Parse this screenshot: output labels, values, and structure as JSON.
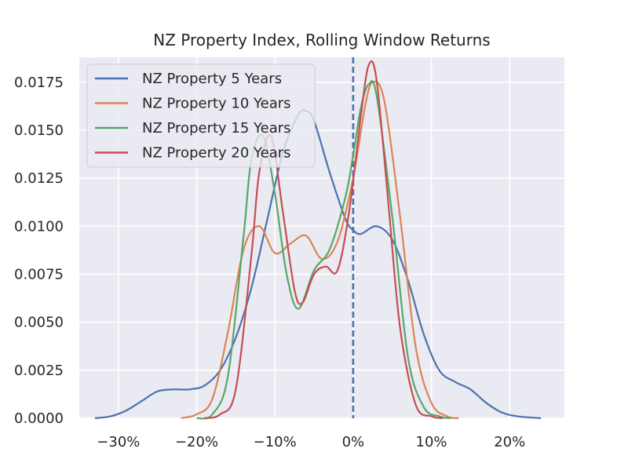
{
  "chart_data": {
    "type": "line",
    "title": "NZ Property Index, Rolling Window Returns",
    "xlabel": "",
    "ylabel": "",
    "xlim": [
      -0.35,
      0.27
    ],
    "ylim": [
      0,
      0.0188
    ],
    "x_ticks": [
      -0.3,
      -0.2,
      -0.1,
      0.0,
      0.1,
      0.2
    ],
    "x_tick_labels": [
      "−30%",
      "−20%",
      "−10%",
      "0%",
      "10%",
      "20%"
    ],
    "y_ticks": [
      0.0,
      0.0025,
      0.005,
      0.0075,
      0.01,
      0.0125,
      0.015,
      0.0175
    ],
    "y_tick_labels": [
      "0.0000",
      "0.0025",
      "0.0050",
      "0.0075",
      "0.0100",
      "0.0125",
      "0.0150",
      "0.0175"
    ],
    "grid": true,
    "legend_position": "top-left",
    "vline": {
      "x": 0.0,
      "style": "dashed",
      "color": "#4c72b0"
    },
    "series": [
      {
        "name": "NZ Property 5 Years",
        "color": "#4c72b0",
        "x": [
          -0.33,
          -0.31,
          -0.29,
          -0.27,
          -0.25,
          -0.23,
          -0.21,
          -0.19,
          -0.17,
          -0.15,
          -0.13,
          -0.11,
          -0.09,
          -0.07,
          -0.06,
          -0.05,
          -0.03,
          -0.01,
          0.0,
          0.01,
          0.03,
          0.05,
          0.07,
          0.09,
          0.11,
          0.13,
          0.15,
          0.17,
          0.19,
          0.21,
          0.24
        ],
        "y": [
          0.0,
          0.0001,
          0.0004,
          0.0009,
          0.0014,
          0.0015,
          0.0015,
          0.0017,
          0.0025,
          0.0042,
          0.0068,
          0.0103,
          0.0138,
          0.0158,
          0.016,
          0.0155,
          0.0128,
          0.0104,
          0.0098,
          0.0096,
          0.01,
          0.0093,
          0.0072,
          0.0044,
          0.0025,
          0.0019,
          0.0015,
          0.0008,
          0.0003,
          0.0001,
          0.0
        ]
      },
      {
        "name": "NZ Property 10 Years",
        "color": "#dd8452",
        "x": [
          -0.22,
          -0.2,
          -0.18,
          -0.16,
          -0.14,
          -0.12,
          -0.1,
          -0.08,
          -0.06,
          -0.04,
          -0.02,
          0.0,
          0.015,
          0.025,
          0.04,
          0.06,
          0.08,
          0.1,
          0.12,
          0.135
        ],
        "y": [
          0.0,
          0.0002,
          0.001,
          0.0045,
          0.0088,
          0.01,
          0.0086,
          0.0091,
          0.0095,
          0.0083,
          0.0092,
          0.0125,
          0.0162,
          0.0175,
          0.0165,
          0.0105,
          0.0037,
          0.0008,
          0.0001,
          0.0
        ]
      },
      {
        "name": "NZ Property 15 Years",
        "color": "#55a868",
        "x": [
          -0.2,
          -0.18,
          -0.16,
          -0.14,
          -0.13,
          -0.115,
          -0.1,
          -0.085,
          -0.07,
          -0.05,
          -0.03,
          -0.01,
          0.0,
          0.01,
          0.02,
          0.03,
          0.05,
          0.07,
          0.09,
          0.11,
          0.125
        ],
        "y": [
          0.0,
          0.0002,
          0.0022,
          0.0095,
          0.0135,
          0.0147,
          0.0117,
          0.0075,
          0.0057,
          0.0077,
          0.0088,
          0.0115,
          0.0137,
          0.0162,
          0.0174,
          0.0168,
          0.0105,
          0.0032,
          0.0006,
          0.0001,
          0.0
        ]
      },
      {
        "name": "NZ Property 20 Years",
        "color": "#c44e52",
        "x": [
          -0.19,
          -0.17,
          -0.15,
          -0.13,
          -0.12,
          -0.105,
          -0.09,
          -0.075,
          -0.065,
          -0.05,
          -0.035,
          -0.02,
          -0.005,
          0.01,
          0.02,
          0.03,
          0.045,
          0.06,
          0.08,
          0.1,
          0.115
        ],
        "y": [
          0.0,
          0.0002,
          0.0015,
          0.0085,
          0.0128,
          0.0147,
          0.0108,
          0.0067,
          0.006,
          0.0075,
          0.0079,
          0.0077,
          0.0108,
          0.0158,
          0.0184,
          0.0176,
          0.0112,
          0.0047,
          0.0007,
          0.0001,
          0.0
        ]
      }
    ]
  }
}
